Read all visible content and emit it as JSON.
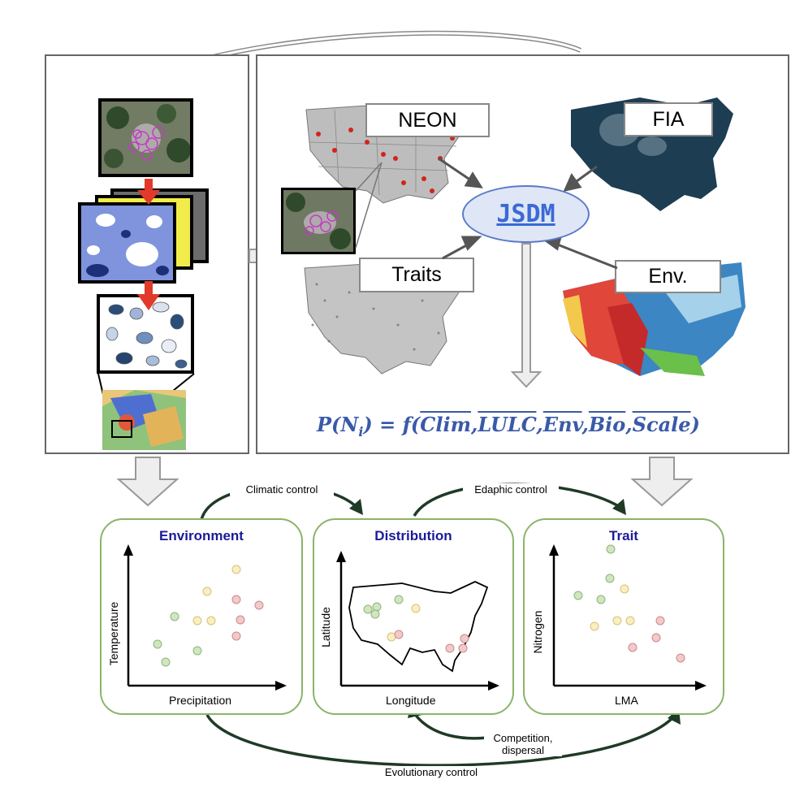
{
  "labels": {
    "neon": "NEON",
    "fia": "FIA",
    "traits": "Traits",
    "env": "Env.",
    "jsdm": "JSDM"
  },
  "formula": {
    "lhs": "P(N",
    "sub": "i",
    "mid": ") = f(",
    "terms": [
      "Clim",
      "LULC",
      "Env",
      "Bio",
      "Scale"
    ],
    "sep": ",",
    "close": ")"
  },
  "panels": {
    "environment": {
      "title": "Environment",
      "xlabel": "Precipitation",
      "ylabel": "Temperature"
    },
    "distribution": {
      "title": "Distribution",
      "xlabel": "Longitude",
      "ylabel": "Latitude"
    },
    "trait": {
      "title": "Trait",
      "xlabel": "LMA",
      "ylabel": "Nitrogen"
    }
  },
  "controls": {
    "climatic": "Climatic control",
    "edaphic": "Edaphic control",
    "competition_1": "Competition,",
    "competition_2": "dispersal",
    "evolutionary": "Evolutionary control"
  },
  "colors": {
    "green_point": "#cfe6c0",
    "yellow_point": "#fbeec0",
    "red_point": "#f3c9c9",
    "panel_border": "#8db36a",
    "title_blue": "#1a1a9a",
    "formula_blue": "#3a5aa8",
    "arrow_dark": "#1f3a26"
  }
}
